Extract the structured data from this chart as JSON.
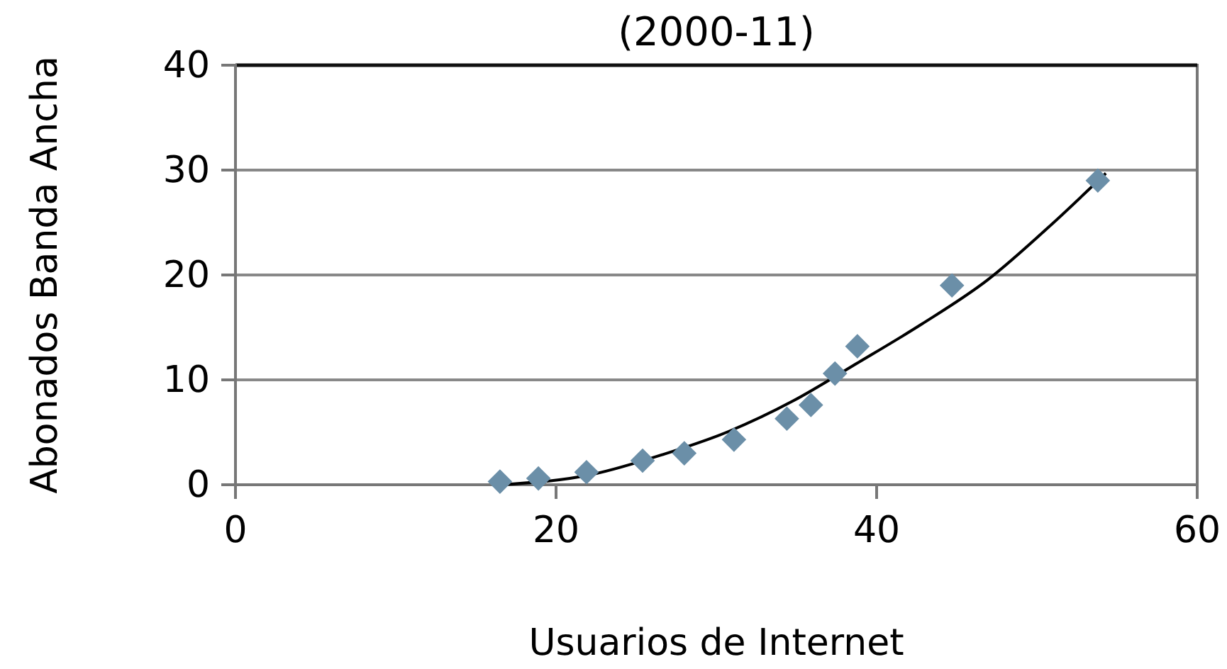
{
  "chart_data": {
    "type": "scatter",
    "title": "(2000-11)",
    "xlabel": "Usuarios de Internet",
    "ylabel": "Abonados Banda Ancha",
    "xlim": [
      0,
      60
    ],
    "xticks": [
      0,
      20,
      40,
      60
    ],
    "ylim": [
      0,
      40
    ],
    "yticks": [
      0,
      10,
      20,
      30,
      40
    ],
    "grid": "y",
    "series": [
      {
        "marker": "diamond",
        "color": "#6b8fa8",
        "x": [
          16.5,
          18.9,
          21.9,
          25.4,
          28.0,
          31.1,
          34.4,
          35.9,
          37.4,
          38.8,
          44.7,
          53.8
        ],
        "values": [
          0.3,
          0.6,
          1.2,
          2.3,
          3.0,
          4.3,
          6.3,
          7.6,
          10.6,
          13.2,
          19.0,
          29.0
        ]
      },
      {
        "type": "line",
        "marker": "none",
        "line_style": "solid",
        "color": "#000000",
        "x": [
          16.6,
          22.3,
          26.7,
          30.8,
          34.8,
          38.8,
          42.8,
          46.9,
          50.9,
          54.3
        ],
        "values": [
          0,
          1.0,
          2.9,
          5.1,
          8.0,
          11.6,
          15.3,
          19.5,
          24.8,
          29.7
        ]
      }
    ]
  }
}
